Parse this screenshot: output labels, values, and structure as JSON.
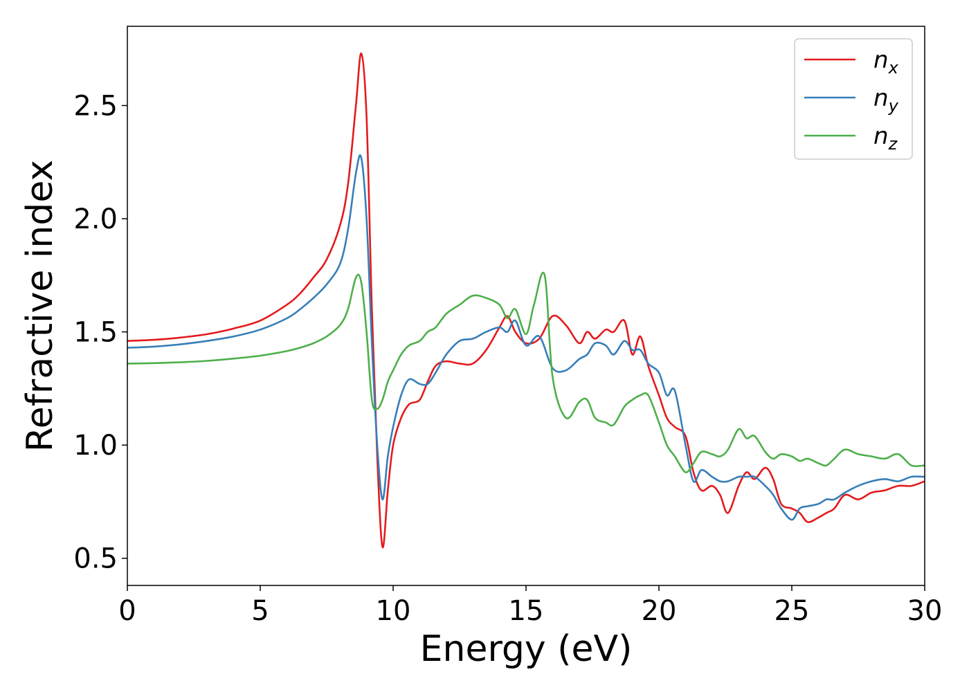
{
  "chart_data": {
    "type": "line",
    "xlabel": "Energy (eV)",
    "ylabel": "Refractive index",
    "xlim": [
      0,
      30
    ],
    "ylim": [
      0.38,
      2.85
    ],
    "xticks": [
      0,
      5,
      10,
      15,
      20,
      25,
      30
    ],
    "yticks": [
      0.5,
      1.0,
      1.5,
      2.0,
      2.5
    ],
    "xtick_labels": [
      "0",
      "5",
      "10",
      "15",
      "20",
      "25",
      "30"
    ],
    "ytick_labels": [
      "0.5",
      "1.0",
      "1.5",
      "2.0",
      "2.5"
    ],
    "grid": false,
    "legend_position": "top-right",
    "series": [
      {
        "name": "n",
        "subscript": "x",
        "color": "#e41a1c",
        "x": [
          0,
          1,
          2,
          3,
          4,
          5,
          6,
          6.5,
          7,
          7.5,
          8,
          8.3,
          8.6,
          8.8,
          9.0,
          9.2,
          9.4,
          9.6,
          9.8,
          10.0,
          10.3,
          10.6,
          11.0,
          11.3,
          11.6,
          12.0,
          12.5,
          13.0,
          13.5,
          14.0,
          14.3,
          14.6,
          15.0,
          15.5,
          16.0,
          16.5,
          17.0,
          17.3,
          17.6,
          18.0,
          18.3,
          18.7,
          19.0,
          19.3,
          19.6,
          20.0,
          20.3,
          20.6,
          21.0,
          21.3,
          21.6,
          22.0,
          22.3,
          22.6,
          23.0,
          23.3,
          23.6,
          24.0,
          24.3,
          24.6,
          25.0,
          25.3,
          25.6,
          26.0,
          26.3,
          26.6,
          27.0,
          27.5,
          28.0,
          28.5,
          29.0,
          29.5,
          30.0
        ],
        "values": [
          1.46,
          1.465,
          1.475,
          1.49,
          1.515,
          1.55,
          1.62,
          1.67,
          1.74,
          1.82,
          1.97,
          2.15,
          2.5,
          2.73,
          2.45,
          1.6,
          0.95,
          0.55,
          0.8,
          1.0,
          1.12,
          1.18,
          1.2,
          1.28,
          1.35,
          1.37,
          1.36,
          1.36,
          1.42,
          1.52,
          1.57,
          1.5,
          1.45,
          1.47,
          1.57,
          1.53,
          1.45,
          1.5,
          1.47,
          1.51,
          1.5,
          1.55,
          1.4,
          1.48,
          1.35,
          1.22,
          1.12,
          1.08,
          1.04,
          0.88,
          0.8,
          0.82,
          0.78,
          0.7,
          0.82,
          0.88,
          0.85,
          0.9,
          0.85,
          0.74,
          0.72,
          0.7,
          0.66,
          0.68,
          0.7,
          0.72,
          0.78,
          0.76,
          0.79,
          0.8,
          0.82,
          0.82,
          0.84
        ]
      },
      {
        "name": "n",
        "subscript": "y",
        "color": "#377eb8",
        "x": [
          0,
          1,
          2,
          3,
          4,
          5,
          6,
          6.5,
          7,
          7.5,
          8,
          8.3,
          8.6,
          8.8,
          9.0,
          9.2,
          9.4,
          9.6,
          9.8,
          10.0,
          10.3,
          10.6,
          11.0,
          11.3,
          11.6,
          12.0,
          12.5,
          13.0,
          13.5,
          14.0,
          14.3,
          14.6,
          15.0,
          15.5,
          16.0,
          16.5,
          17.0,
          17.3,
          17.6,
          18.0,
          18.3,
          18.7,
          19.0,
          19.3,
          19.6,
          20.0,
          20.3,
          20.6,
          21.0,
          21.3,
          21.6,
          22.0,
          22.3,
          22.6,
          23.0,
          23.3,
          23.6,
          24.0,
          24.3,
          24.6,
          25.0,
          25.3,
          25.6,
          26.0,
          26.3,
          26.6,
          27.0,
          27.5,
          28.0,
          28.5,
          29.0,
          29.5,
          30.0
        ],
        "values": [
          1.43,
          1.435,
          1.445,
          1.46,
          1.48,
          1.51,
          1.56,
          1.6,
          1.65,
          1.71,
          1.8,
          1.95,
          2.2,
          2.27,
          2.0,
          1.45,
          1.0,
          0.76,
          0.95,
          1.08,
          1.22,
          1.29,
          1.27,
          1.27,
          1.32,
          1.4,
          1.46,
          1.47,
          1.5,
          1.52,
          1.5,
          1.55,
          1.44,
          1.48,
          1.34,
          1.33,
          1.38,
          1.4,
          1.45,
          1.44,
          1.4,
          1.46,
          1.42,
          1.42,
          1.36,
          1.32,
          1.22,
          1.24,
          1.0,
          0.84,
          0.89,
          0.86,
          0.84,
          0.84,
          0.86,
          0.86,
          0.86,
          0.82,
          0.78,
          0.72,
          0.67,
          0.72,
          0.73,
          0.74,
          0.76,
          0.76,
          0.79,
          0.82,
          0.84,
          0.85,
          0.84,
          0.86,
          0.86
        ]
      },
      {
        "name": "n",
        "subscript": "z",
        "color": "#4daf4a",
        "x": [
          0,
          1,
          2,
          3,
          4,
          5,
          6,
          6.5,
          7,
          7.5,
          8,
          8.3,
          8.6,
          8.8,
          9.0,
          9.2,
          9.4,
          9.6,
          9.8,
          10.0,
          10.3,
          10.6,
          11.0,
          11.3,
          11.6,
          12.0,
          12.5,
          13.0,
          13.5,
          14.0,
          14.3,
          14.6,
          15.0,
          15.3,
          15.7,
          16.0,
          16.5,
          17.0,
          17.3,
          17.6,
          18.0,
          18.3,
          18.7,
          19.0,
          19.3,
          19.6,
          20.0,
          20.3,
          20.6,
          21.0,
          21.3,
          21.6,
          22.0,
          22.3,
          22.6,
          23.0,
          23.3,
          23.6,
          24.0,
          24.3,
          24.6,
          25.0,
          25.3,
          25.6,
          26.0,
          26.3,
          26.6,
          27.0,
          27.5,
          28.0,
          28.5,
          29.0,
          29.5,
          30.0
        ],
        "values": [
          1.36,
          1.362,
          1.366,
          1.372,
          1.382,
          1.395,
          1.415,
          1.43,
          1.45,
          1.48,
          1.53,
          1.6,
          1.74,
          1.72,
          1.5,
          1.2,
          1.16,
          1.2,
          1.28,
          1.33,
          1.4,
          1.44,
          1.46,
          1.5,
          1.52,
          1.58,
          1.62,
          1.66,
          1.65,
          1.62,
          1.56,
          1.6,
          1.49,
          1.62,
          1.75,
          1.3,
          1.12,
          1.19,
          1.2,
          1.12,
          1.1,
          1.09,
          1.17,
          1.2,
          1.22,
          1.22,
          1.1,
          1.0,
          0.95,
          0.88,
          0.92,
          0.97,
          0.96,
          0.95,
          0.98,
          1.07,
          1.03,
          1.04,
          0.97,
          0.94,
          0.96,
          0.95,
          0.93,
          0.94,
          0.92,
          0.91,
          0.94,
          0.98,
          0.96,
          0.95,
          0.94,
          0.96,
          0.91,
          0.91
        ]
      }
    ]
  }
}
